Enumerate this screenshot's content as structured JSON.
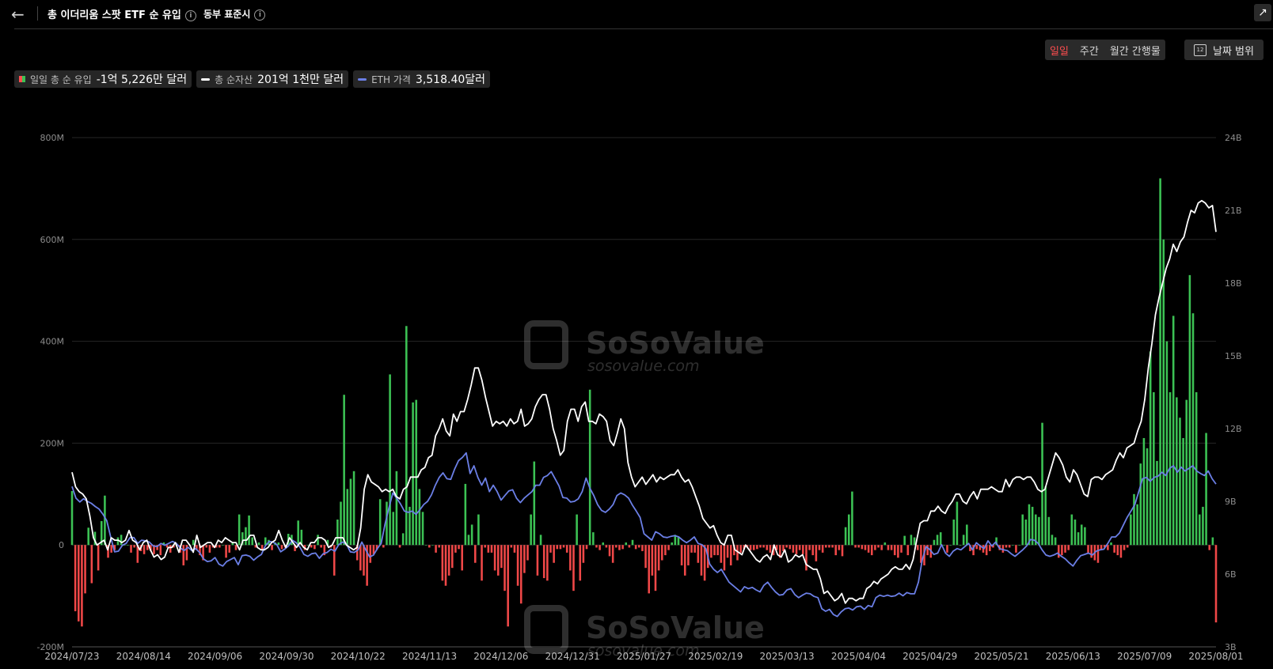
{
  "header": {
    "back_icon": "arrow-left-icon",
    "title": "총 이더리움 스팟 ETF 순 유입",
    "timezone": "동부 표준시",
    "share_icon": "share-icon"
  },
  "periods": [
    {
      "label": "일일",
      "active": true
    },
    {
      "label": "주간",
      "active": false
    },
    {
      "label": "월간 간행물",
      "active": false
    }
  ],
  "date_range": {
    "label": "날짜 범위",
    "icon": "calendar-icon",
    "icon_text": "12"
  },
  "legend": [
    {
      "label": "일일 총 순 유입",
      "value": "-1억 5,226만 달러"
    },
    {
      "label": "총 순자산",
      "value": "201억 1천만 달러"
    },
    {
      "label": "ETH 가격",
      "value": "3,518.40달러"
    }
  ],
  "watermark": {
    "brand": "SoSoValue",
    "site": "sosovalue.com"
  },
  "colors": {
    "inflow": "#3cc254",
    "outflow": "#f04848",
    "net_assets": "#ffffff",
    "eth_price": "#6b7fe6",
    "active_period": "#ff4d4f"
  },
  "chart_data": {
    "type": "bar",
    "left_axis": {
      "min": -200,
      "max": 800,
      "ticks": [
        "800M",
        "600M",
        "400M",
        "200M",
        "0",
        "-200M"
      ]
    },
    "right_axis": {
      "min": 3,
      "max": 24,
      "ticks": [
        "24B",
        "21B",
        "18B",
        "15B",
        "12B",
        "9B",
        "6B",
        "3B"
      ]
    },
    "x_labels": [
      "2024/07/23",
      "2024/08/14",
      "2024/09/06",
      "2024/09/30",
      "2024/10/22",
      "2024/11/13",
      "2024/12/06",
      "2024/12/31",
      "2025/01/27",
      "2025/02/19",
      "2025/03/13",
      "2025/04/04",
      "2025/04/29",
      "2025/05/21",
      "2025/06/13",
      "2025/07/09",
      "2025/08/01"
    ],
    "grid": true,
    "series": [
      {
        "name": "일일 총 순 유입",
        "type": "bar",
        "unit": "M",
        "values": [
          106,
          -130,
          -150,
          -160,
          -95,
          34,
          -75,
          26,
          -50,
          47,
          97,
          -25,
          -15,
          -10,
          15,
          20,
          0,
          0,
          -15,
          -5,
          -35,
          -12,
          -18,
          -10,
          -12,
          -18,
          -10,
          -20,
          5,
          -5,
          -15,
          -5,
          0,
          -15,
          -40,
          -30,
          0,
          10,
          -10,
          -20,
          -30,
          -5,
          -15,
          -5,
          -5,
          -5,
          0,
          -25,
          -15,
          5,
          -10,
          60,
          25,
          35,
          58,
          15,
          -5,
          5,
          -10,
          15,
          10,
          -10,
          5,
          5,
          -8,
          -5,
          22,
          20,
          -12,
          48,
          30,
          -10,
          0,
          -5,
          -8,
          20,
          -5,
          -20,
          10,
          -5,
          -60,
          50,
          85,
          295,
          110,
          130,
          145,
          -30,
          -50,
          -60,
          -80,
          -35,
          -18,
          -10,
          90,
          -5,
          85,
          335,
          65,
          145,
          -5,
          23,
          430,
          75,
          280,
          285,
          110,
          65,
          0,
          -5,
          0,
          -15,
          -5,
          -70,
          -80,
          -60,
          -45,
          -15,
          -8,
          -50,
          120,
          20,
          40,
          -35,
          60,
          -70,
          -5,
          -15,
          -15,
          -50,
          -60,
          -45,
          -90,
          -160,
          -5,
          -15,
          -80,
          -115,
          -55,
          -30,
          60,
          164,
          -60,
          20,
          -65,
          -70,
          -15,
          -35,
          -8,
          -8,
          -5,
          -15,
          -50,
          -90,
          60,
          -70,
          -35,
          -8,
          305,
          25,
          -5,
          -10,
          5,
          -5,
          -22,
          -35,
          -5,
          -10,
          -8,
          5,
          -5,
          10,
          -8,
          -5,
          -12,
          -45,
          -95,
          -60,
          -90,
          -50,
          -30,
          -20,
          -10,
          5,
          20,
          15,
          -40,
          -60,
          -40,
          -15,
          -15,
          -35,
          -60,
          -70,
          -45,
          -25,
          -20,
          -20,
          -35,
          -50,
          -25,
          -40,
          -20,
          -30,
          -15,
          -8,
          -5,
          -10,
          -10,
          -8,
          -5,
          -5,
          -10,
          -15,
          -20,
          -10,
          -25,
          -12,
          -5,
          -8,
          -15,
          -18,
          -10,
          -18,
          -50,
          -10,
          -20,
          -32,
          -10,
          -15,
          -5,
          -5,
          -5,
          -20,
          -10,
          -22,
          35,
          60,
          105,
          -5,
          -5,
          -8,
          -10,
          -15,
          -20,
          -10,
          -5,
          -10,
          5,
          -10,
          -10,
          -20,
          -25,
          -15,
          18,
          -20,
          20,
          15,
          -10,
          -35,
          -40,
          -20,
          -25,
          10,
          20,
          25,
          0,
          -15,
          0,
          50,
          85,
          0,
          20,
          40,
          -12,
          -20,
          -8,
          -10,
          -15,
          -20,
          -12,
          -5,
          15,
          -10,
          -15,
          -5,
          -5,
          0,
          -15,
          0,
          60,
          50,
          80,
          75,
          60,
          55,
          240,
          115,
          55,
          20,
          15,
          -25,
          -20,
          -15,
          -10,
          60,
          50,
          25,
          40,
          35,
          -15,
          -25,
          -30,
          -35,
          -10,
          -5,
          -10,
          5,
          -15,
          -20,
          -25,
          -10,
          -5,
          60,
          100,
          80,
          160,
          210,
          190,
          380,
          300,
          165,
          720,
          600,
          400,
          300,
          450,
          290,
          250,
          210,
          285,
          530,
          455,
          300,
          60,
          75,
          220,
          -10,
          15,
          -152
        ]
      },
      {
        "name": "총 순자산",
        "type": "line",
        "unit": "B",
        "values": [
          10.2,
          9.6,
          9.4,
          9.3,
          9.1,
          8.4,
          7.5,
          7.2,
          7.3,
          7.4,
          7.0,
          7.5,
          7.4,
          7.4,
          7.3,
          7.4,
          7.8,
          7.4,
          7.3,
          7.0,
          7.3,
          7.4,
          7.0,
          6.7,
          6.8,
          6.6,
          6.7,
          7.1,
          7.1,
          7.3,
          6.9,
          7.4,
          7.4,
          7.2,
          6.9,
          7.6,
          7.1,
          7.2,
          7.3,
          7.3,
          7.1,
          7.4,
          7.3,
          7.5,
          7.4,
          7.3,
          7.3,
          7.0,
          7.4,
          7.4,
          7.6,
          7.6,
          7.1,
          7.0,
          7.0,
          7.1,
          7.3,
          7.4,
          7.8,
          7.4,
          7.1,
          7.5,
          7.3,
          7.1,
          7.3,
          7.1,
          7.0,
          7.3,
          7.3,
          7.5,
          7.5,
          7.4,
          7.1,
          7.2,
          7.5,
          7.5,
          7.5,
          7.2,
          7.1,
          7.0,
          7.1,
          7.9,
          9.5,
          10.1,
          9.8,
          9.7,
          9.6,
          9.4,
          9.5,
          9.4,
          9.5,
          9.2,
          9.1,
          9.5,
          9.6,
          10.0,
          10.0,
          10.0,
          10.3,
          10.4,
          10.8,
          10.9,
          11.7,
          12.0,
          12.4,
          11.9,
          11.7,
          12.6,
          12.3,
          12.7,
          12.7,
          13.2,
          13.8,
          14.5,
          14.5,
          14.0,
          13.3,
          12.7,
          12.1,
          12.3,
          12.2,
          12.3,
          12.1,
          12.4,
          12.2,
          12.3,
          12.8,
          12.1,
          12.2,
          12.4,
          12.9,
          13.2,
          13.4,
          13.4,
          12.8,
          12.0,
          11.5,
          10.9,
          11.1,
          12.3,
          12.8,
          12.8,
          12.3,
          12.9,
          13.1,
          12.3,
          12.3,
          12.2,
          12.6,
          12.5,
          12.3,
          11.5,
          11.3,
          11.8,
          12.4,
          12.0,
          10.6,
          10.0,
          9.6,
          9.8,
          10.0,
          9.7,
          9.9,
          10.1,
          9.8,
          10.0,
          9.9,
          10.0,
          10.1,
          10.1,
          10.3,
          10.0,
          9.8,
          9.9,
          9.6,
          9.2,
          8.8,
          8.3,
          8.1,
          7.9,
          8.0,
          7.6,
          7.3,
          7.2,
          7.6,
          7.6,
          7.0,
          6.9,
          6.8,
          7.2,
          7.0,
          6.8,
          6.6,
          6.5,
          6.7,
          6.8,
          6.6,
          7.2,
          6.8,
          6.7,
          7.0,
          6.5,
          6.6,
          6.8,
          6.7,
          6.8,
          6.4,
          6.3,
          6.2,
          6.2,
          5.8,
          5.2,
          5.3,
          5.1,
          4.9,
          5.0,
          5.2,
          4.8,
          5.0,
          5.0,
          4.9,
          5.0,
          5.0,
          5.4,
          5.5,
          5.7,
          5.6,
          5.8,
          5.9,
          6.0,
          6.2,
          6.3,
          6.2,
          6.2,
          6.4,
          6.2,
          6.6,
          7.4,
          8.1,
          8.2,
          8.2,
          8.6,
          8.6,
          8.8,
          8.6,
          8.5,
          8.8,
          9.0,
          9.3,
          9.3,
          9.0,
          8.9,
          9.2,
          9.4,
          9.1,
          9.5,
          9.5,
          9.5,
          9.6,
          9.5,
          9.4,
          9.4,
          9.9,
          9.6,
          9.9,
          10.0,
          10.0,
          9.9,
          10.0,
          10.0,
          9.8,
          9.5,
          9.4,
          9.5,
          10.0,
          10.5,
          11.0,
          10.8,
          10.5,
          10.0,
          9.8,
          10.3,
          10.1,
          9.7,
          9.3,
          9.2,
          9.9,
          10.0,
          10.0,
          9.9,
          10.1,
          10.2,
          10.3,
          10.7,
          11.0,
          10.8,
          11.2,
          11.3,
          11.4,
          11.9,
          12.3,
          13.2,
          14.5,
          15.5,
          16.7,
          17.4,
          18.0,
          18.6,
          19.0,
          19.6,
          19.3,
          19.7,
          19.9,
          20.5,
          21.0,
          20.9,
          21.3,
          21.4,
          21.3,
          21.1,
          21.2,
          20.11
        ]
      },
      {
        "name": "ETH 가격",
        "type": "line",
        "unit": "USD",
        "values": [
          3480,
          3300,
          3240,
          3290,
          3250,
          3220,
          3170,
          3130,
          3050,
          2950,
          2700,
          2470,
          2480,
          2570,
          2600,
          2690,
          2690,
          2600,
          2650,
          2640,
          2620,
          2560,
          2550,
          2600,
          2570,
          2600,
          2630,
          2600,
          2530,
          2490,
          2540,
          2490,
          2520,
          2460,
          2360,
          2320,
          2330,
          2380,
          2280,
          2250,
          2320,
          2350,
          2380,
          2270,
          2410,
          2420,
          2400,
          2340,
          2390,
          2430,
          2560,
          2630,
          2620,
          2580,
          2470,
          2510,
          2560,
          2650,
          2610,
          2540,
          2430,
          2400,
          2440,
          2450,
          2370,
          2440,
          2460,
          2510,
          2480,
          2580,
          2620,
          2590,
          2470,
          2460,
          2500,
          2620,
          2500,
          2390,
          2420,
          2520,
          2600,
          2900,
          3150,
          3380,
          3300,
          3210,
          3100,
          3080,
          3100,
          3050,
          3120,
          3200,
          3250,
          3350,
          3500,
          3620,
          3690,
          3600,
          3590,
          3750,
          3880,
          3930,
          4000,
          3680,
          3800,
          3620,
          3500,
          3610,
          3400,
          3500,
          3400,
          3270,
          3340,
          3410,
          3430,
          3300,
          3230,
          3300,
          3350,
          3400,
          3500,
          3500,
          3620,
          3650,
          3710,
          3600,
          3490,
          3310,
          3300,
          3240,
          3250,
          3290,
          3400,
          3610,
          3450,
          3340,
          3200,
          3110,
          3080,
          3130,
          3200,
          3340,
          3380,
          3350,
          3300,
          3190,
          3100,
          3000,
          2750,
          2700,
          2650,
          2780,
          2750,
          2700,
          2690,
          2710,
          2720,
          2700,
          2650,
          2610,
          2650,
          2700,
          2600,
          2580,
          2520,
          2280,
          2200,
          2150,
          2200,
          2100,
          2000,
          1950,
          1900,
          1850,
          1930,
          1900,
          1920,
          1880,
          1850,
          1950,
          2000,
          1920,
          1850,
          1800,
          1810,
          1880,
          1900,
          1810,
          1760,
          1800,
          1830,
          1820,
          1780,
          1760,
          1590,
          1550,
          1580,
          1500,
          1470,
          1540,
          1590,
          1600,
          1570,
          1620,
          1630,
          1580,
          1640,
          1620,
          1760,
          1800,
          1780,
          1800,
          1780,
          1790,
          1830,
          1790,
          1840,
          1820,
          1820,
          2000,
          2350,
          2550,
          2500,
          2430,
          2450,
          2580,
          2450,
          2400,
          2480,
          2520,
          2500,
          2550,
          2600,
          2500,
          2610,
          2560,
          2520,
          2640,
          2560,
          2620,
          2520,
          2500,
          2490,
          2440,
          2400,
          2450,
          2500,
          2560,
          2660,
          2650,
          2600,
          2500,
          2420,
          2400,
          2420,
          2450,
          2400,
          2360,
          2300,
          2250,
          2340,
          2410,
          2430,
          2450,
          2420,
          2480,
          2500,
          2510,
          2600,
          2700,
          2700,
          2760,
          2880,
          3000,
          3100,
          3200,
          3400,
          3600,
          3620,
          3560,
          3620,
          3640,
          3700,
          3650,
          3760,
          3800,
          3700,
          3780,
          3720,
          3760,
          3800,
          3720,
          3680,
          3650,
          3720,
          3600,
          3518.4
        ]
      }
    ]
  }
}
